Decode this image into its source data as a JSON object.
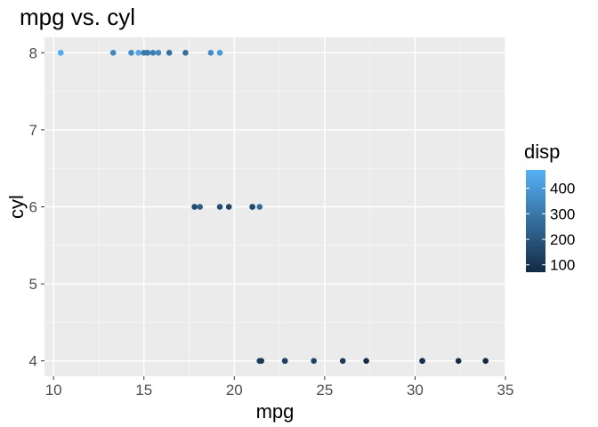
{
  "chart_data": {
    "type": "scatter",
    "title": "mpg vs. cyl",
    "xlabel": "mpg",
    "ylabel": "cyl",
    "xlim": [
      9.5,
      35
    ],
    "ylim": [
      3.8,
      8.2
    ],
    "xticks": [
      10,
      15,
      20,
      25,
      30,
      35
    ],
    "yticks": [
      4,
      5,
      6,
      7,
      8
    ],
    "grid": true,
    "legend": {
      "title": "disp",
      "placement": "right",
      "ticks": [
        100,
        200,
        300,
        400
      ],
      "range": [
        71.1,
        472
      ],
      "color_low": "#132B43",
      "color_high": "#56B1F7"
    },
    "points": [
      {
        "x": 21.0,
        "y": 6,
        "color": 160
      },
      {
        "x": 21.0,
        "y": 6,
        "color": 160
      },
      {
        "x": 22.8,
        "y": 4,
        "color": 108
      },
      {
        "x": 21.4,
        "y": 6,
        "color": 258
      },
      {
        "x": 18.7,
        "y": 8,
        "color": 360
      },
      {
        "x": 18.1,
        "y": 6,
        "color": 225
      },
      {
        "x": 14.3,
        "y": 8,
        "color": 360
      },
      {
        "x": 24.4,
        "y": 4,
        "color": 146.7
      },
      {
        "x": 22.8,
        "y": 4,
        "color": 140.8
      },
      {
        "x": 19.2,
        "y": 6,
        "color": 167.6
      },
      {
        "x": 17.8,
        "y": 6,
        "color": 167.6
      },
      {
        "x": 16.4,
        "y": 8,
        "color": 275.8
      },
      {
        "x": 17.3,
        "y": 8,
        "color": 275.8
      },
      {
        "x": 15.2,
        "y": 8,
        "color": 275.8
      },
      {
        "x": 10.4,
        "y": 8,
        "color": 472
      },
      {
        "x": 10.4,
        "y": 8,
        "color": 460
      },
      {
        "x": 14.7,
        "y": 8,
        "color": 440
      },
      {
        "x": 32.4,
        "y": 4,
        "color": 78.7
      },
      {
        "x": 30.4,
        "y": 4,
        "color": 75.7
      },
      {
        "x": 33.9,
        "y": 4,
        "color": 71.1
      },
      {
        "x": 21.5,
        "y": 4,
        "color": 120.1
      },
      {
        "x": 15.5,
        "y": 8,
        "color": 318
      },
      {
        "x": 15.2,
        "y": 8,
        "color": 304
      },
      {
        "x": 13.3,
        "y": 8,
        "color": 350
      },
      {
        "x": 19.2,
        "y": 8,
        "color": 400
      },
      {
        "x": 27.3,
        "y": 4,
        "color": 79
      },
      {
        "x": 26.0,
        "y": 4,
        "color": 120.3
      },
      {
        "x": 30.4,
        "y": 4,
        "color": 95.1
      },
      {
        "x": 15.8,
        "y": 8,
        "color": 351
      },
      {
        "x": 19.7,
        "y": 6,
        "color": 145
      },
      {
        "x": 15.0,
        "y": 8,
        "color": 301
      },
      {
        "x": 21.4,
        "y": 4,
        "color": 121
      }
    ]
  }
}
